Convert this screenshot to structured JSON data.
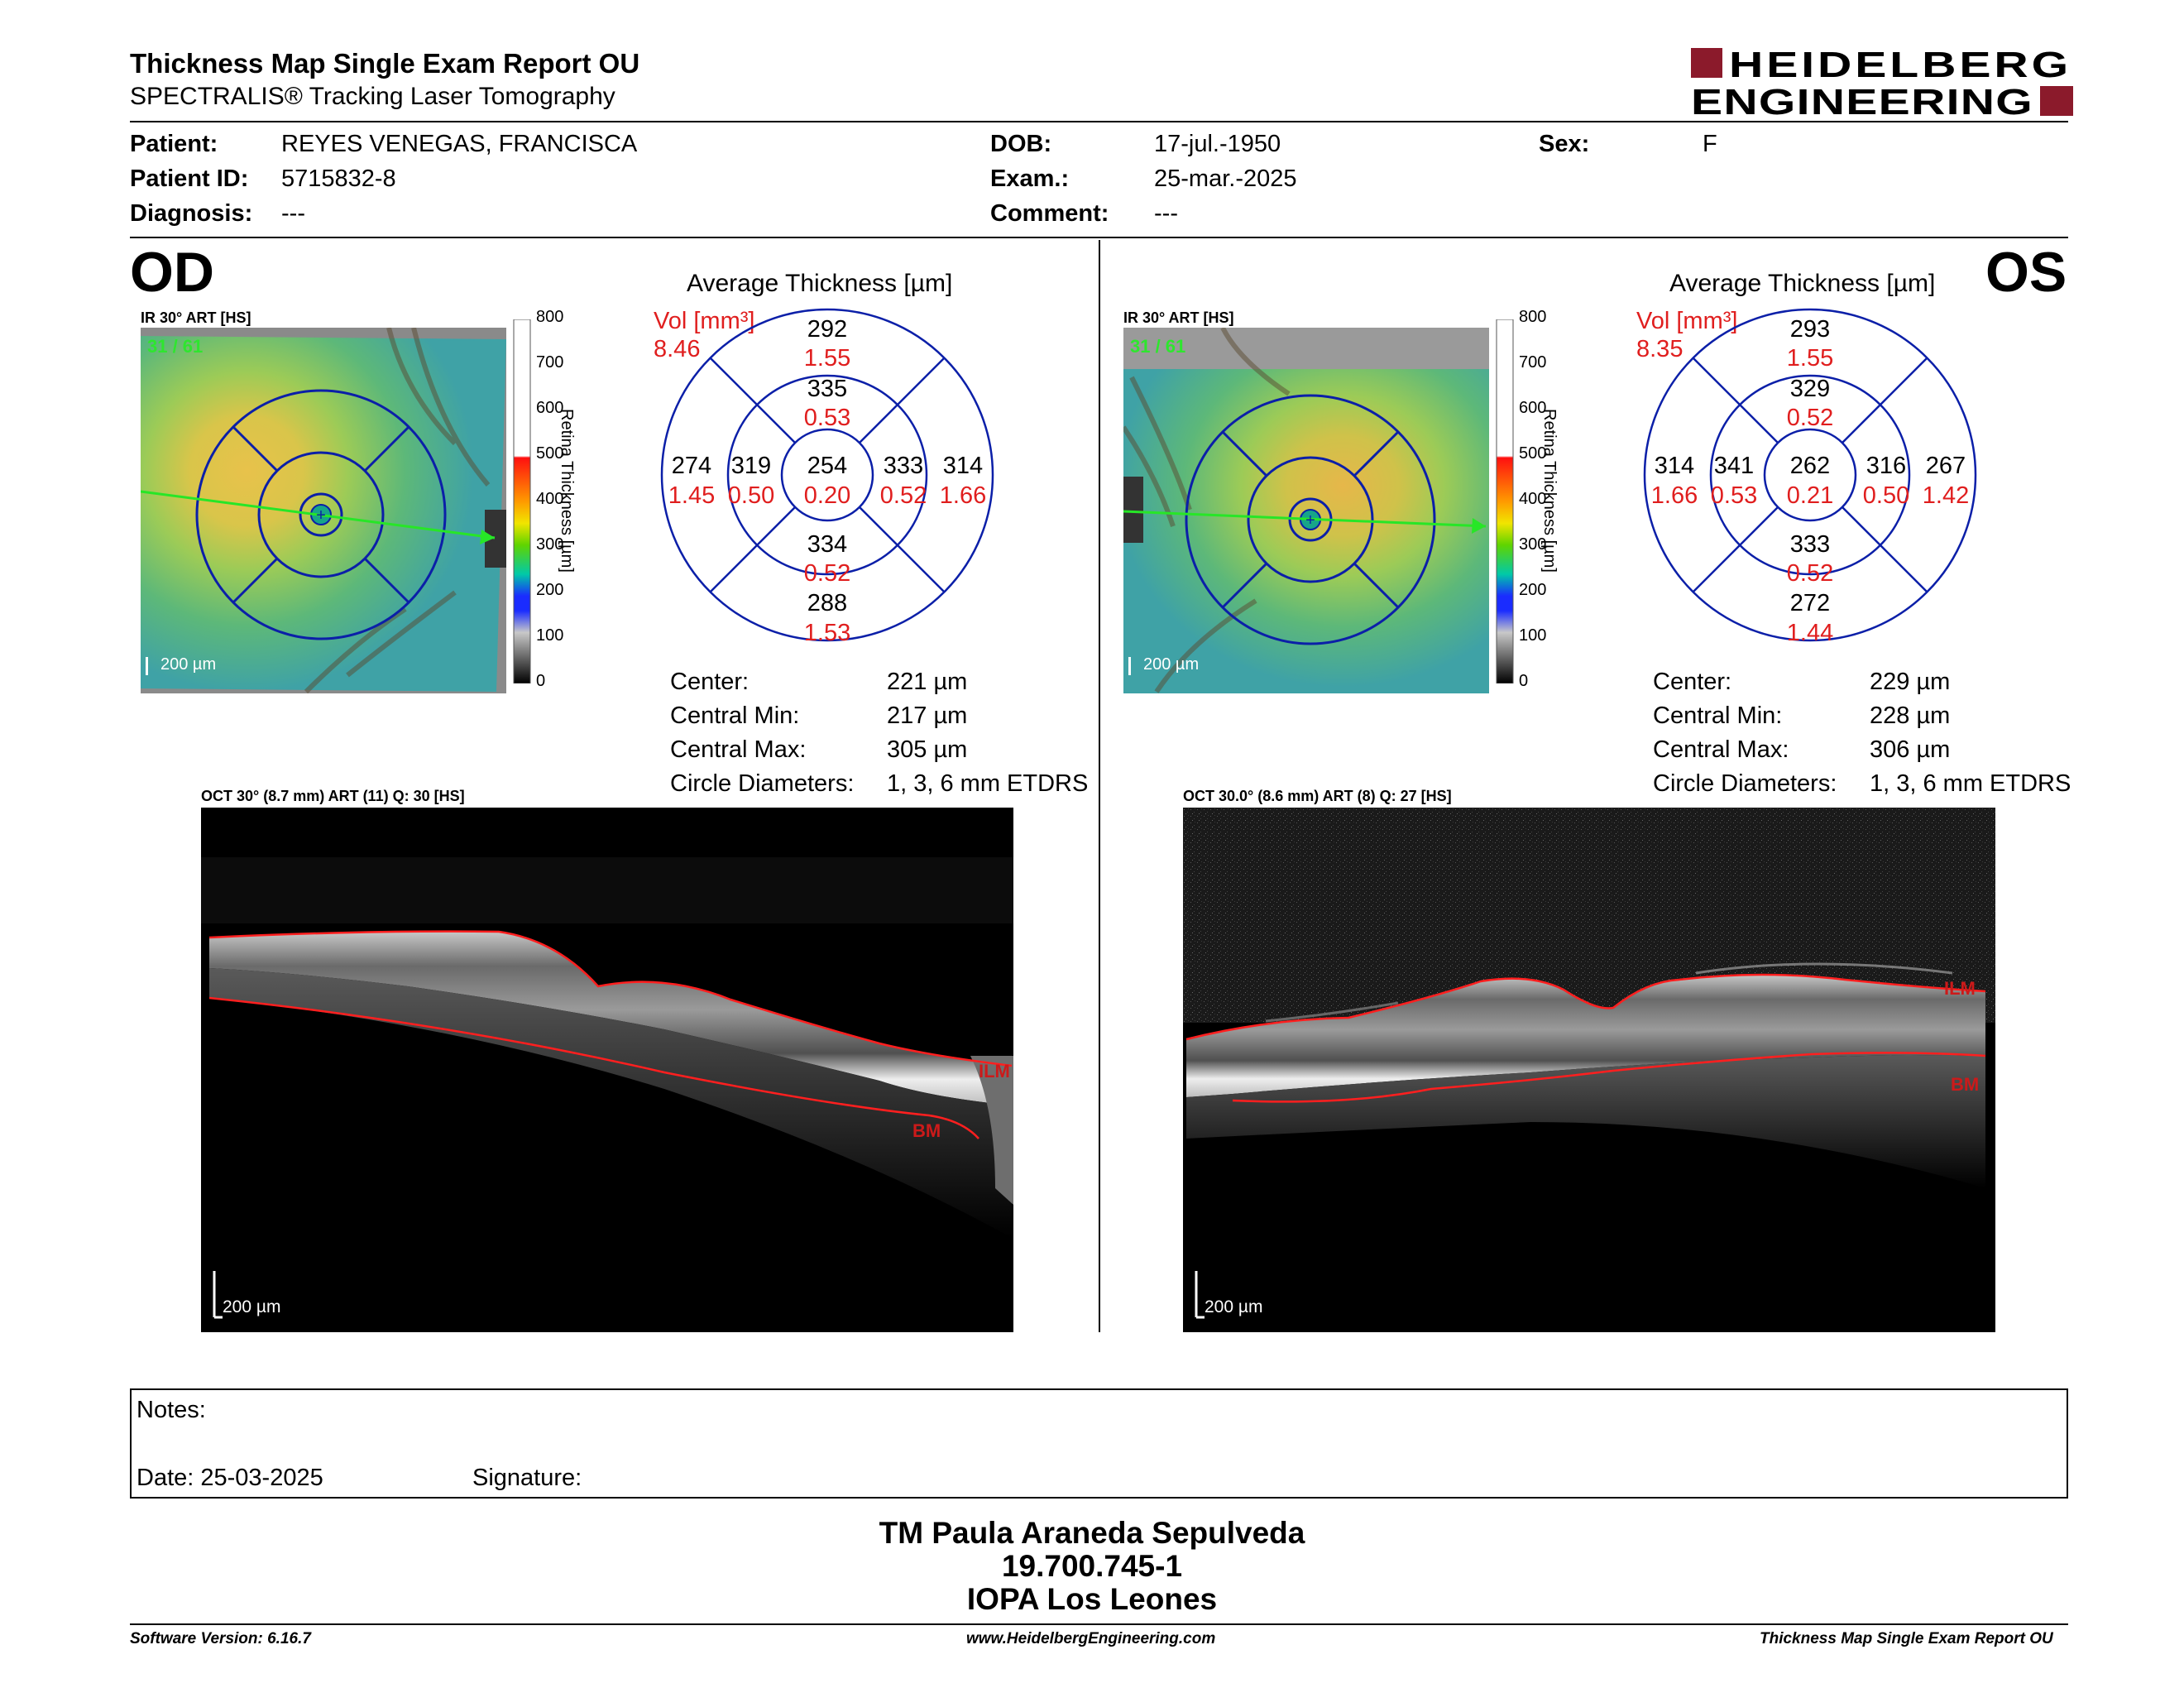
{
  "header": {
    "title": "Thickness Map Single Exam Report OU",
    "subtitle": "SPECTRALIS® Tracking Laser Tomography",
    "logo_line1": "HEIDELBERG",
    "logo_line2": "ENGINEERING",
    "logo_color": "#8b1a2b"
  },
  "patient": {
    "patient_label": "Patient:",
    "patient_value": "REYES VENEGAS, FRANCISCA",
    "id_label": "Patient ID:",
    "id_value": "5715832-8",
    "diagnosis_label": "Diagnosis:",
    "diagnosis_value": "---",
    "dob_label": "DOB:",
    "dob_value": "17-jul.-1950",
    "exam_label": "Exam.:",
    "exam_value": "25-mar.-2025",
    "comment_label": "Comment:",
    "comment_value": "---",
    "sex_label": "Sex:",
    "sex_value": "F"
  },
  "colorbar": {
    "ticks": [
      "800",
      "700",
      "600",
      "500",
      "400",
      "300",
      "200",
      "100",
      "0"
    ],
    "label": "Retina Thickness [µm]"
  },
  "od": {
    "eye": "OD",
    "ir_label": "IR 30° ART [HS]",
    "ir_counter": "31 / 61",
    "ir_scale": "200 µm",
    "etdrs_title": "Average Thickness [µm]",
    "vol_label": "Vol [mm³]",
    "vol_value": "8.46",
    "etdrs": {
      "center": {
        "thick": "254",
        "vol": "0.20"
      },
      "inner_superior": {
        "thick": "335",
        "vol": "0.53"
      },
      "inner_inferior": {
        "thick": "334",
        "vol": "0.52"
      },
      "inner_left": {
        "thick": "319",
        "vol": "0.50"
      },
      "inner_right": {
        "thick": "333",
        "vol": "0.52"
      },
      "outer_superior": {
        "thick": "292",
        "vol": "1.55"
      },
      "outer_inferior": {
        "thick": "288",
        "vol": "1.53"
      },
      "outer_left": {
        "thick": "274",
        "vol": "1.45"
      },
      "outer_right": {
        "thick": "314",
        "vol": "1.66"
      }
    },
    "stats": {
      "center_label": "Center:",
      "center_value": "221 µm",
      "min_label": "Central Min:",
      "min_value": "217 µm",
      "max_label": "Central Max:",
      "max_value": "305 µm",
      "circ_label": "Circle Diameters:",
      "circ_value": "1, 3, 6 mm ETDRS"
    },
    "oct_label": "OCT 30° (8.7 mm) ART (11) Q: 30 [HS]",
    "oct_scale": "200 µm",
    "ilm": "ILM",
    "bm": "BM"
  },
  "os": {
    "eye": "OS",
    "ir_label": "IR 30° ART [HS]",
    "ir_counter": "31 / 61",
    "ir_scale": "200 µm",
    "etdrs_title": "Average Thickness [µm]",
    "vol_label": "Vol [mm³]",
    "vol_value": "8.35",
    "etdrs": {
      "center": {
        "thick": "262",
        "vol": "0.21"
      },
      "inner_superior": {
        "thick": "329",
        "vol": "0.52"
      },
      "inner_inferior": {
        "thick": "333",
        "vol": "0.52"
      },
      "inner_left": {
        "thick": "341",
        "vol": "0.53"
      },
      "inner_right": {
        "thick": "316",
        "vol": "0.50"
      },
      "outer_superior": {
        "thick": "293",
        "vol": "1.55"
      },
      "outer_inferior": {
        "thick": "272",
        "vol": "1.44"
      },
      "outer_left": {
        "thick": "314",
        "vol": "1.66"
      },
      "outer_right": {
        "thick": "267",
        "vol": "1.42"
      }
    },
    "stats": {
      "center_label": "Center:",
      "center_value": "229 µm",
      "min_label": "Central Min:",
      "min_value": "228 µm",
      "max_label": "Central Max:",
      "max_value": "306 µm",
      "circ_label": "Circle Diameters:",
      "circ_value": "1, 3, 6 mm ETDRS"
    },
    "oct_label": "OCT 30.0° (8.6 mm) ART (8) Q: 27 [HS]",
    "oct_scale": "200 µm",
    "ilm": "ILM",
    "bm": "BM"
  },
  "notes": {
    "notes_label": "Notes:",
    "date_label": "Date: 25-03-2025",
    "signature_label": "Signature:"
  },
  "signatory": {
    "name": "TM Paula Araneda Sepulveda",
    "id": "19.700.745-1",
    "institution": "IOPA Los Leones"
  },
  "footer": {
    "software": "Software Version: 6.16.7",
    "website": "www.HeidelbergEngineering.com",
    "report": "Thickness Map Single Exam Report OU"
  }
}
